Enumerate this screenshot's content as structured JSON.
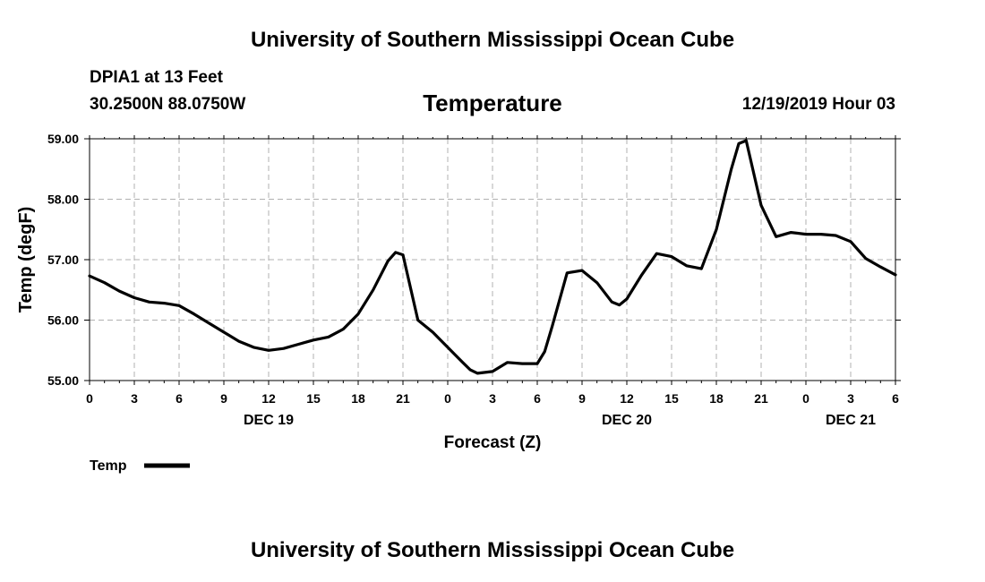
{
  "header": {
    "title_top": "University of Southern Mississippi Ocean Cube",
    "station": "DPIA1 at 13 Feet",
    "coords": "30.2500N 88.0750W",
    "chart_title": "Temperature",
    "datetime": "12/19/2019 Hour 03"
  },
  "footer": {
    "title_bottom": "University of Southern Mississippi Ocean Cube"
  },
  "chart_data": {
    "type": "line",
    "title": "Temperature",
    "xlabel": "Forecast (Z)",
    "ylabel": "Temp (degF)",
    "x_unit": "hours from DEC 19 00Z",
    "xlim": [
      0,
      54
    ],
    "ylim": [
      55.0,
      59.0
    ],
    "yticks": [
      55.0,
      56.0,
      57.0,
      58.0,
      59.0
    ],
    "ytick_labels": [
      "55.00",
      "56.00",
      "57.00",
      "58.00",
      "59.00"
    ],
    "xticks": [
      0,
      3,
      6,
      9,
      12,
      15,
      18,
      21,
      24,
      27,
      30,
      33,
      36,
      39,
      42,
      45,
      48,
      51,
      54
    ],
    "xtick_labels": [
      "0",
      "3",
      "6",
      "9",
      "12",
      "15",
      "18",
      "21",
      "0",
      "3",
      "6",
      "9",
      "12",
      "15",
      "18",
      "21",
      "0",
      "3",
      "6"
    ],
    "date_labels": [
      {
        "x": 12,
        "label": "DEC 19"
      },
      {
        "x": 36,
        "label": "DEC 20"
      },
      {
        "x": 51,
        "label": "DEC 21"
      }
    ],
    "grid": true,
    "legend": {
      "position": "bottom-left",
      "entries": [
        "Temp"
      ]
    },
    "series": [
      {
        "name": "Temp",
        "color": "#000000",
        "x": [
          0,
          1,
          2,
          3,
          4,
          5,
          6,
          7,
          8,
          9,
          10,
          11,
          12,
          13,
          14,
          15,
          16,
          17,
          18,
          19,
          20,
          20.5,
          21,
          22,
          23,
          24,
          25,
          25.5,
          26,
          27,
          28,
          29,
          30,
          30.5,
          31,
          32,
          33,
          34,
          35,
          35.5,
          36,
          37,
          38,
          39,
          40,
          41,
          42,
          43,
          43.5,
          44,
          45,
          46,
          47,
          48,
          49,
          50,
          51,
          52,
          53,
          54
        ],
        "values": [
          56.73,
          56.62,
          56.48,
          56.37,
          56.3,
          56.28,
          56.24,
          56.1,
          55.95,
          55.8,
          55.65,
          55.55,
          55.5,
          55.53,
          55.6,
          55.67,
          55.72,
          55.85,
          56.1,
          56.5,
          56.98,
          57.12,
          57.08,
          56.0,
          55.8,
          55.55,
          55.3,
          55.18,
          55.12,
          55.15,
          55.3,
          55.28,
          55.28,
          55.48,
          55.9,
          56.78,
          56.82,
          56.62,
          56.3,
          56.25,
          56.35,
          56.75,
          57.1,
          57.05,
          56.9,
          56.85,
          57.5,
          58.5,
          58.92,
          58.97,
          57.9,
          57.38,
          57.45,
          57.42,
          57.42,
          57.4,
          57.3,
          57.02,
          56.88,
          56.75
        ]
      }
    ]
  }
}
